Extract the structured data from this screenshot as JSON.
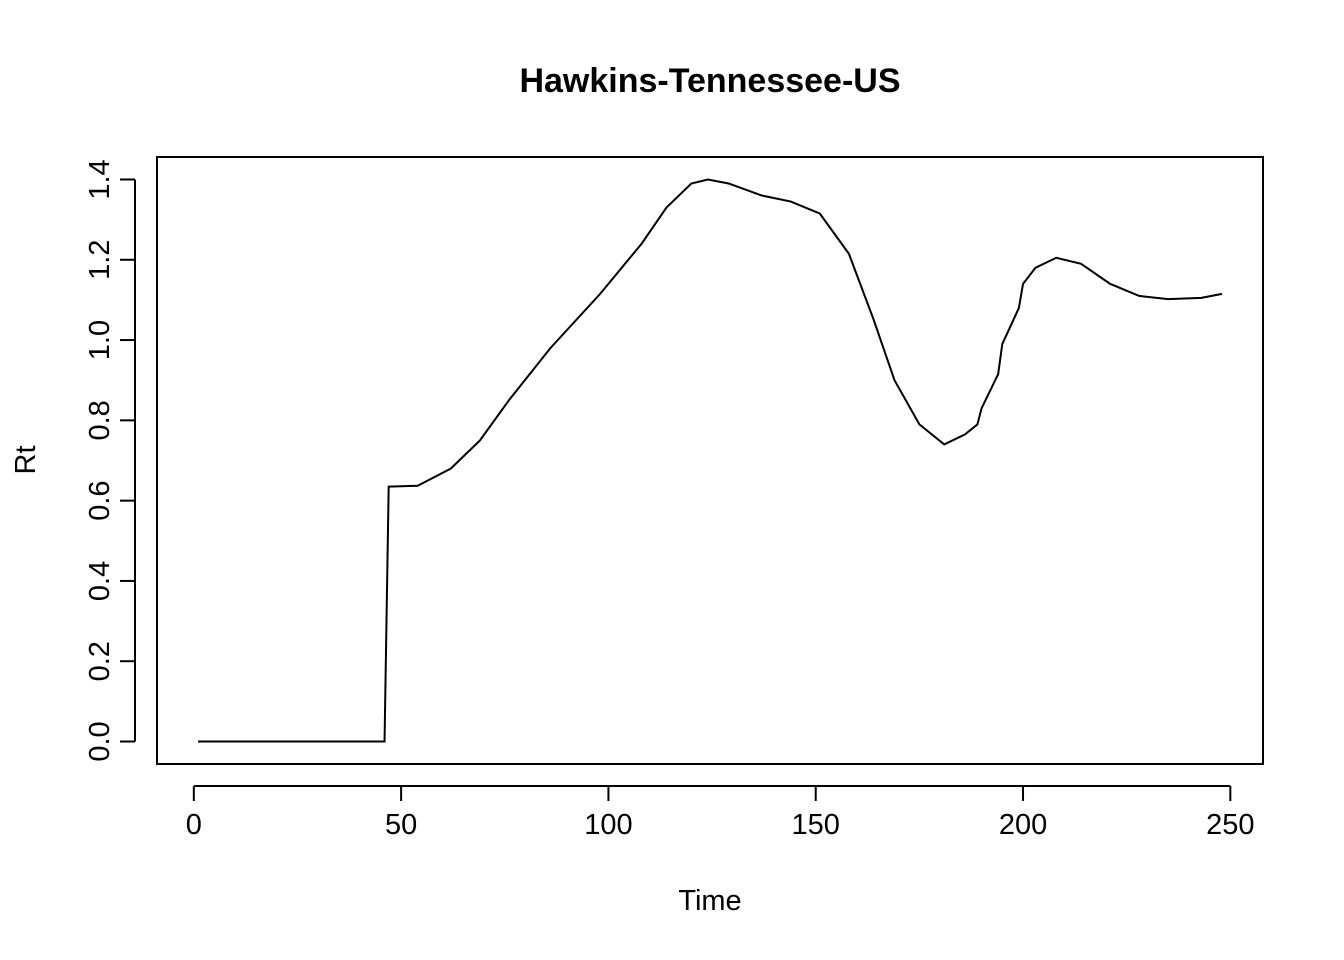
{
  "chart_data": {
    "type": "line",
    "title": "Hawkins-Tennessee-US",
    "x_label": "Time",
    "y_label": "Rt",
    "x": [
      1,
      10,
      20,
      30,
      40,
      46,
      47,
      54,
      62,
      69,
      76,
      86,
      98,
      108,
      114,
      120,
      124,
      129,
      137,
      144,
      151,
      158,
      164,
      169,
      175,
      181,
      186,
      189,
      190,
      194,
      195,
      199,
      200,
      203,
      208,
      214,
      221,
      228,
      235,
      243,
      248
    ],
    "series": [
      {
        "name": "Rt",
        "color": "#000000",
        "values": [
          0,
          0,
          0,
          0,
          0,
          0,
          0.635,
          0.637,
          0.68,
          0.75,
          0.85,
          0.98,
          1.115,
          1.24,
          1.33,
          1.39,
          1.4,
          1.39,
          1.36,
          1.345,
          1.315,
          1.215,
          1.05,
          0.9,
          0.79,
          0.74,
          0.765,
          0.79,
          0.83,
          0.915,
          0.99,
          1.08,
          1.14,
          1.18,
          1.205,
          1.19,
          1.14,
          1.11,
          1.102,
          1.105,
          1.115
        ]
      }
    ],
    "xlim": [
      -8.88,
      257.88
    ],
    "ylim": [
      -0.056,
      1.456
    ],
    "xticks": [
      0,
      50,
      100,
      150,
      200,
      250
    ],
    "yticks": [
      {
        "value": 0,
        "label": "0.0"
      },
      {
        "value": 0.2,
        "label": "0.2"
      },
      {
        "value": 0.4,
        "label": "0.4"
      },
      {
        "value": 0.6,
        "label": "0.6"
      },
      {
        "value": 0.8,
        "label": "0.8"
      },
      {
        "value": 1.0,
        "label": "1.0"
      },
      {
        "value": 1.2,
        "label": "1.2"
      },
      {
        "value": 1.4,
        "label": "1.4"
      }
    ],
    "grid": false
  }
}
